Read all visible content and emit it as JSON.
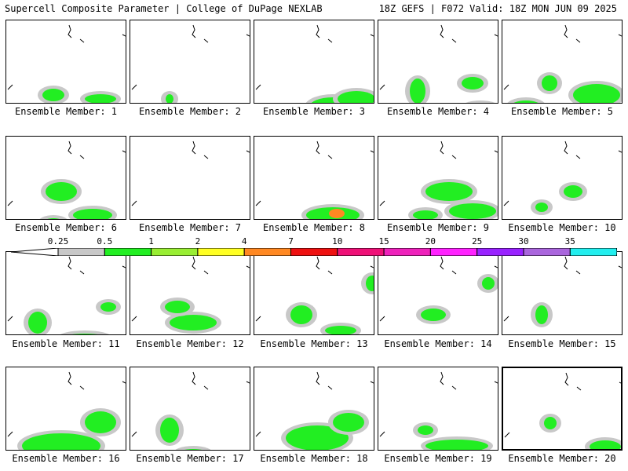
{
  "header": {
    "left_title": "Supercell Composite Parameter | College of DuPage NEXLAB",
    "right_title": "18Z GEFS | F072 Valid: 18Z MON JUN 09 2025"
  },
  "panels": [
    {
      "label": "Ensemble Member: 1"
    },
    {
      "label": "Ensemble Member: 2"
    },
    {
      "label": "Ensemble Member: 3"
    },
    {
      "label": "Ensemble Member: 4"
    },
    {
      "label": "Ensemble Member: 5"
    },
    {
      "label": "Ensemble Member: 6"
    },
    {
      "label": "Ensemble Member: 7"
    },
    {
      "label": "Ensemble Member: 8"
    },
    {
      "label": "Ensemble Member: 9"
    },
    {
      "label": "Ensemble Member: 10"
    },
    {
      "label": "Ensemble Member: 11"
    },
    {
      "label": "Ensemble Member: 12"
    },
    {
      "label": "Ensemble Member: 13"
    },
    {
      "label": "Ensemble Member: 14"
    },
    {
      "label": "Ensemble Member: 15"
    },
    {
      "label": "Ensemble Member: 16"
    },
    {
      "label": "Ensemble Member: 17"
    },
    {
      "label": "Ensemble Member: 18"
    },
    {
      "label": "Ensemble Member: 19"
    },
    {
      "label": "Ensemble Member: 20",
      "selected": true
    }
  ],
  "colorbar": {
    "ticks": [
      "0.25",
      "0.5",
      "1",
      "2",
      "4",
      "7",
      "10",
      "15",
      "20",
      "25",
      "30",
      "35"
    ],
    "colors": [
      "#c8c8c8",
      "#22ee22",
      "#99ee33",
      "#ffff22",
      "#ff8822",
      "#ee1111",
      "#ee1177",
      "#ee22bb",
      "#ff22ff",
      "#9922ff",
      "#aa66dd",
      "#22eeee"
    ],
    "outline_color": "#000000"
  }
}
